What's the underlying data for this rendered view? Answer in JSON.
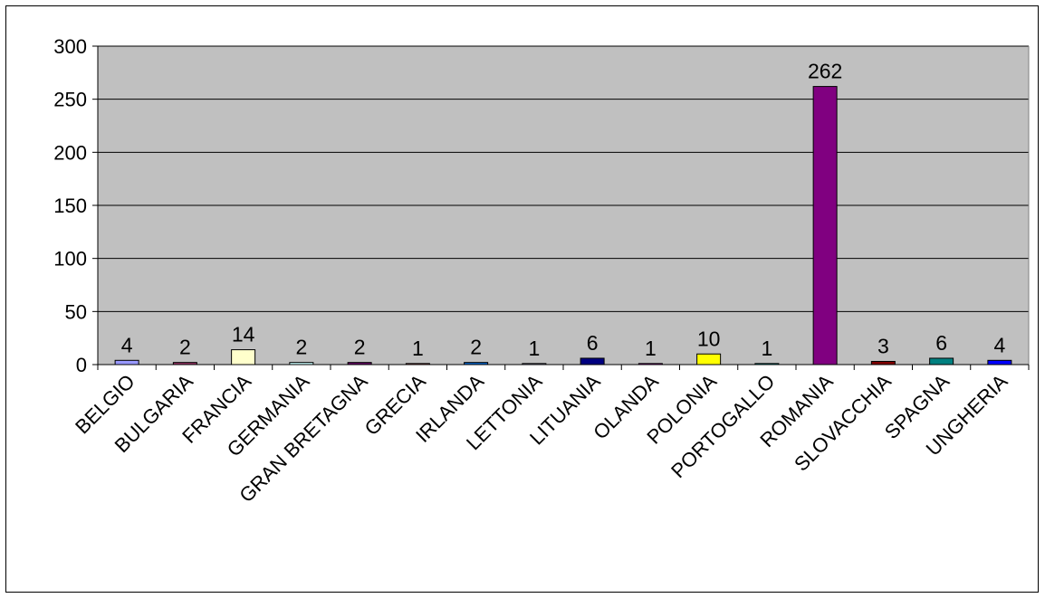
{
  "chart_data": {
    "type": "bar",
    "title": "",
    "xlabel": "",
    "ylabel": "",
    "ylim": [
      0,
      300
    ],
    "yticks": [
      0,
      50,
      100,
      150,
      200,
      250,
      300
    ],
    "grid": true,
    "legend": "none",
    "plot_background": "#c0c0c0",
    "categories": [
      "BELGIO",
      "BULGARIA",
      "FRANCIA",
      "GERMANIA",
      "GRAN BRETAGNA",
      "GRECIA",
      "IRLANDA",
      "LETTONIA",
      "LITUANIA",
      "OLANDA",
      "POLONIA",
      "PORTOGALLO",
      "ROMANIA",
      "SLOVACCHIA",
      "SPAGNA",
      "UNGHERIA"
    ],
    "values": [
      4,
      2,
      14,
      2,
      2,
      1,
      2,
      1,
      6,
      1,
      10,
      1,
      262,
      3,
      6,
      4
    ],
    "colors": [
      "#9999ff",
      "#993366",
      "#ffffcc",
      "#ccffff",
      "#660066",
      "#ff8080",
      "#0066cc",
      "#ccccff",
      "#000080",
      "#ff00ff",
      "#ffff00",
      "#00ffff",
      "#800080",
      "#800000",
      "#008080",
      "#0000ff"
    ]
  }
}
